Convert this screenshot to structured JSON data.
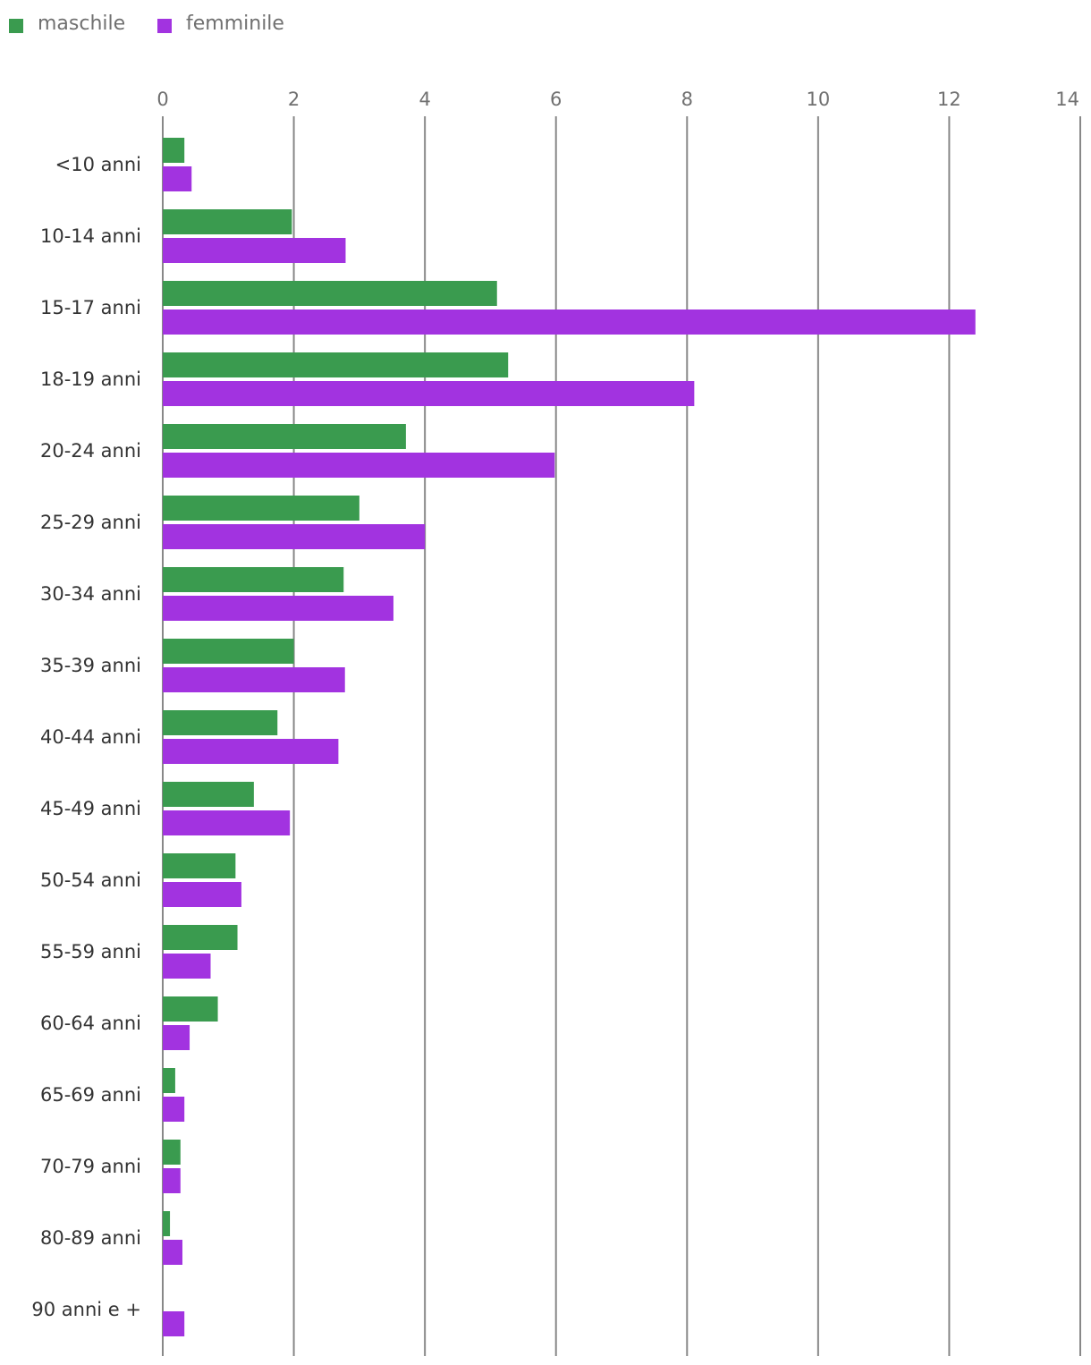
{
  "chart_data": {
    "type": "bar",
    "orientation": "horizontal",
    "categories": [
      "<10 anni",
      "10-14 anni",
      "15-17 anni",
      "18-19 anni",
      "20-24 anni",
      "25-29 anni",
      "30-34 anni",
      "35-39 anni",
      "40-44 anni",
      "45-49 anni",
      "50-54 anni",
      "55-59 anni",
      "60-64 anni",
      "65-69 anni",
      "70-79 anni",
      "80-89 anni",
      "90 anni e +"
    ],
    "series": [
      {
        "name": "maschile",
        "color": "#3a9b4f",
        "values": [
          0.33,
          1.97,
          5.1,
          5.27,
          3.71,
          3.0,
          2.76,
          2.0,
          1.75,
          1.39,
          1.11,
          1.14,
          0.84,
          0.19,
          0.27,
          0.11,
          0
        ]
      },
      {
        "name": "femminile",
        "color": "#a233e0",
        "values": [
          0.44,
          2.79,
          12.4,
          8.11,
          5.98,
          4.0,
          3.52,
          2.78,
          2.68,
          1.94,
          1.2,
          0.73,
          0.41,
          0.33,
          0.27,
          0.3,
          0.33
        ]
      }
    ],
    "x_ticks": [
      "0",
      "2",
      "4",
      "6",
      "8",
      "10",
      "12",
      "14"
    ],
    "xlim": [
      0,
      14
    ],
    "xlabel": "",
    "ylabel": "",
    "title": "",
    "grid": true,
    "legend_position": "top-left"
  }
}
